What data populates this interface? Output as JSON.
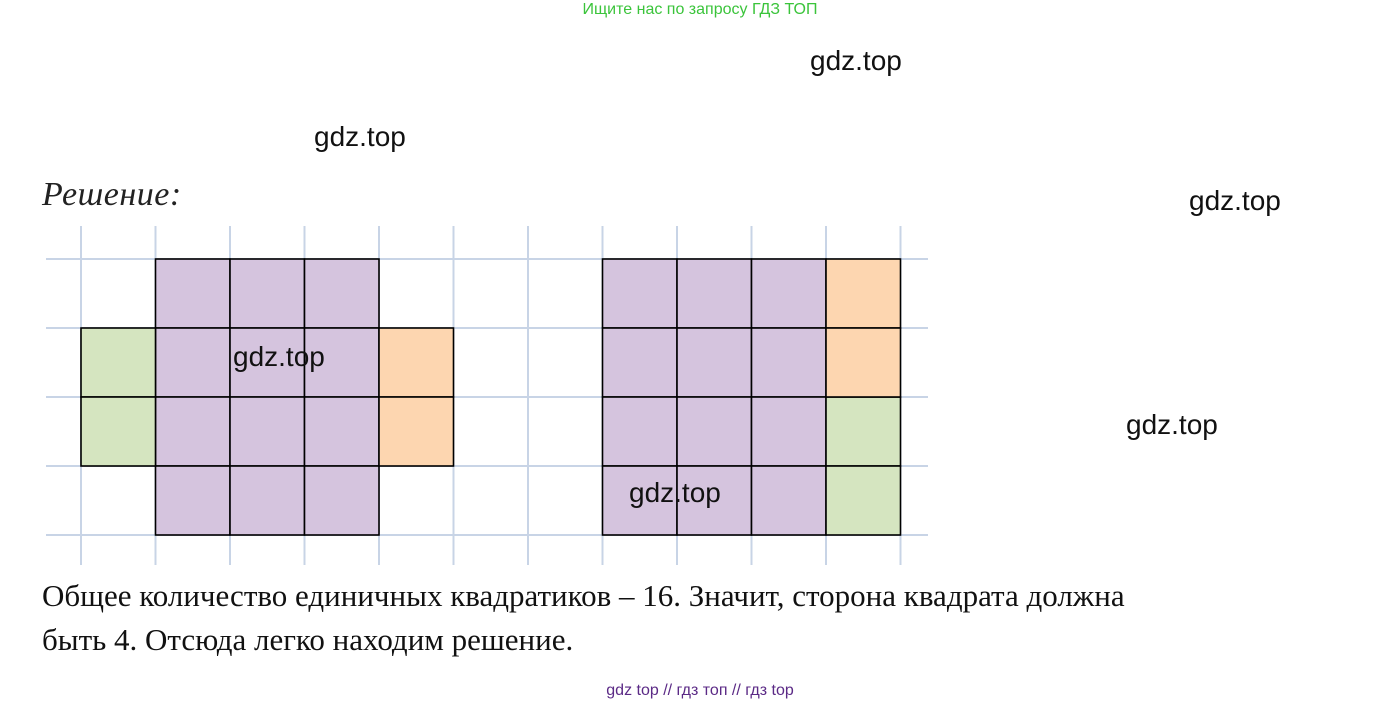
{
  "header": {
    "banner": "Ищите нас по запросу ГДЗ ТОП"
  },
  "watermarks": [
    "gdz.top",
    "gdz.top",
    "gdz.top",
    "gdz.top",
    "gdz.top",
    "gdz.top"
  ],
  "solution": {
    "heading": "Решение:",
    "text_line_1": "Общее количество единичных квадратиков – 16. Значит, сторона квадрата должна",
    "text_line_2": "быть 4. Отсюда легко находим решение."
  },
  "figure": {
    "colors": {
      "grid_line": "#c8d4e6",
      "purple": "#d5c4de",
      "green": "#d5e5c0",
      "orange": "#fdd6b0",
      "outline": "#000000"
    },
    "left_shape": {
      "purple_cells": [
        [
          1,
          0
        ],
        [
          2,
          0
        ],
        [
          3,
          0
        ],
        [
          1,
          1
        ],
        [
          2,
          1
        ],
        [
          3,
          1
        ],
        [
          1,
          2
        ],
        [
          2,
          2
        ],
        [
          3,
          2
        ],
        [
          1,
          3
        ],
        [
          2,
          3
        ],
        [
          3,
          3
        ]
      ],
      "green_cells": [
        [
          0,
          1
        ],
        [
          0,
          2
        ]
      ],
      "orange_cells": [
        [
          4,
          1
        ],
        [
          4,
          2
        ]
      ]
    },
    "right_shape": {
      "purple_cells": [
        [
          0,
          0
        ],
        [
          1,
          0
        ],
        [
          2,
          0
        ],
        [
          0,
          1
        ],
        [
          1,
          1
        ],
        [
          2,
          1
        ],
        [
          0,
          2
        ],
        [
          1,
          2
        ],
        [
          2,
          2
        ],
        [
          0,
          3
        ],
        [
          1,
          3
        ],
        [
          2,
          3
        ]
      ],
      "green_cells": [
        [
          3,
          2
        ],
        [
          3,
          3
        ]
      ],
      "orange_cells": [
        [
          3,
          0
        ],
        [
          3,
          1
        ]
      ]
    }
  },
  "footer": {
    "text": "gdz top  //  гдз топ  //  гдз top"
  }
}
